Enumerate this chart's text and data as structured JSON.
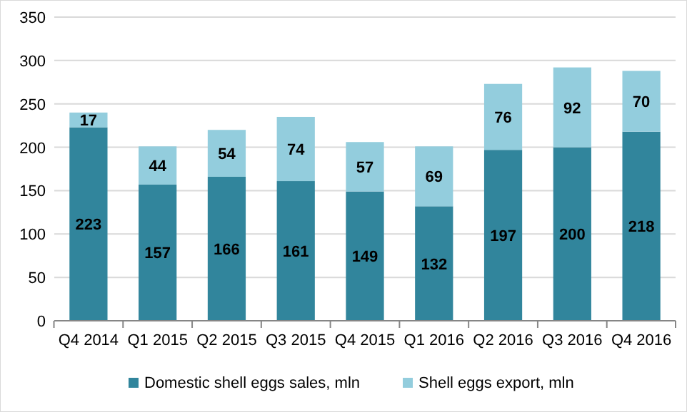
{
  "chart_data": {
    "type": "bar",
    "stacked": true,
    "categories": [
      "Q4 2014",
      "Q1 2015",
      "Q2 2015",
      "Q3 2015",
      "Q4 2015",
      "Q1 2016",
      "Q2 2016",
      "Q3 2016",
      "Q4 2016"
    ],
    "series": [
      {
        "name": "Domestic shell eggs sales, mln",
        "color": "#31859c",
        "values": [
          223,
          157,
          166,
          161,
          149,
          132,
          197,
          200,
          218
        ]
      },
      {
        "name": "Shell eggs export, mln",
        "color": "#93cddd",
        "values": [
          17,
          44,
          54,
          74,
          57,
          69,
          76,
          92,
          70
        ]
      }
    ],
    "ylim": [
      0,
      350
    ],
    "yticks": [
      0,
      50,
      100,
      150,
      200,
      250,
      300,
      350
    ],
    "grid": "y",
    "legend": "bottom",
    "data_labels": true
  }
}
